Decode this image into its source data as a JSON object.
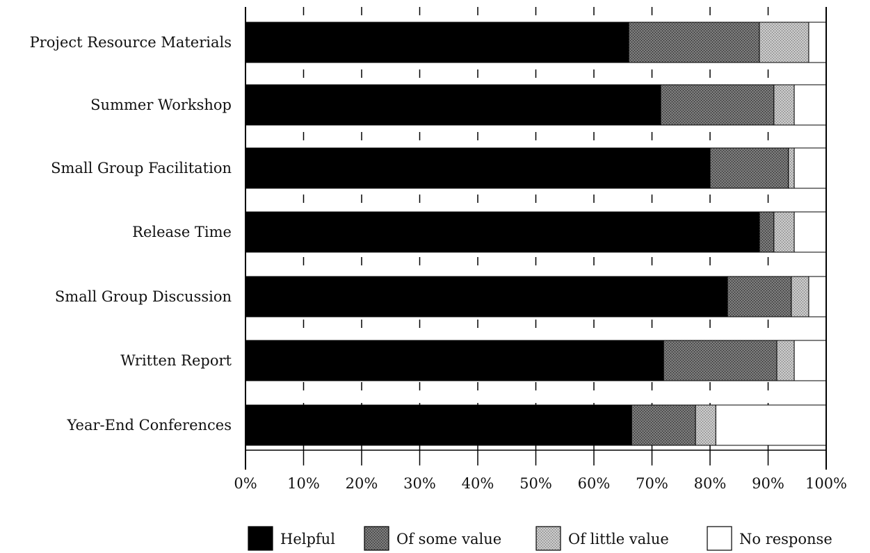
{
  "chart_data": {
    "type": "bar",
    "orientation": "horizontal",
    "stacked": true,
    "categories": [
      "Project Resource Materials",
      "Summer Workshop",
      "Small Group Facilitation",
      "Release Time",
      "Small Group Discussion",
      "Written Report",
      "Year-End Conferences"
    ],
    "series": [
      {
        "name": "Helpful",
        "color": "#000000",
        "pattern": "solid",
        "values": [
          66,
          71.5,
          80,
          88.5,
          83,
          72,
          66.5
        ]
      },
      {
        "name": "Of some value",
        "color": "#5a5a5a",
        "pattern": "stipple-dark",
        "values": [
          22.5,
          19.5,
          13.5,
          2.5,
          11,
          19.5,
          11
        ]
      },
      {
        "name": "Of little value",
        "color": "#a8a8a8",
        "pattern": "stipple-light",
        "values": [
          8.5,
          3.5,
          1,
          3.5,
          3,
          3,
          3.5
        ]
      },
      {
        "name": "No response",
        "color": "#ffffff",
        "pattern": "empty",
        "values": [
          3,
          5.5,
          5.5,
          5.5,
          3,
          5.5,
          19
        ]
      }
    ],
    "x_ticks": [
      "0%",
      "10%",
      "20%",
      "30%",
      "40%",
      "50%",
      "60%",
      "70%",
      "80%",
      "90%",
      "100%"
    ],
    "xlim": [
      0,
      100
    ],
    "grid": "vertical dashed at each 10%",
    "legend": "bottom",
    "title": "",
    "xlabel": "",
    "ylabel": ""
  }
}
